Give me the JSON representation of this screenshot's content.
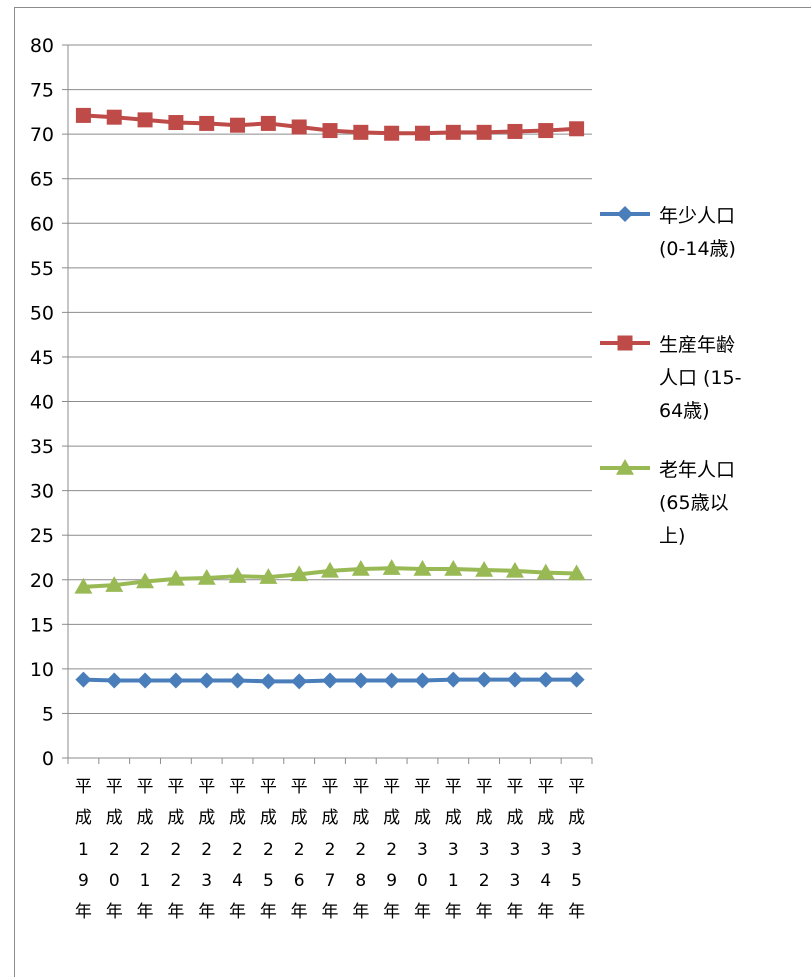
{
  "chart_data": {
    "type": "line",
    "title": "",
    "xlabel": "",
    "ylabel": "",
    "ylim": [
      0,
      80
    ],
    "yticks": [
      0,
      5,
      10,
      15,
      20,
      25,
      30,
      35,
      40,
      45,
      50,
      55,
      60,
      65,
      70,
      75,
      80
    ],
    "grid": true,
    "legend_position": "right",
    "categories": [
      [
        "平",
        "成",
        "1",
        "9",
        "年"
      ],
      [
        "平",
        "成",
        "2",
        "0",
        "年"
      ],
      [
        "平",
        "成",
        "2",
        "1",
        "年"
      ],
      [
        "平",
        "成",
        "2",
        "2",
        "年"
      ],
      [
        "平",
        "成",
        "2",
        "3",
        "年"
      ],
      [
        "平",
        "成",
        "2",
        "4",
        "年"
      ],
      [
        "平",
        "成",
        "2",
        "5",
        "年"
      ],
      [
        "平",
        "成",
        "2",
        "6",
        "年"
      ],
      [
        "平",
        "成",
        "2",
        "7",
        "年"
      ],
      [
        "平",
        "成",
        "2",
        "8",
        "年"
      ],
      [
        "平",
        "成",
        "2",
        "9",
        "年"
      ],
      [
        "平",
        "成",
        "3",
        "0",
        "年"
      ],
      [
        "平",
        "成",
        "3",
        "1",
        "年"
      ],
      [
        "平",
        "成",
        "3",
        "2",
        "年"
      ],
      [
        "平",
        "成",
        "3",
        "3",
        "年"
      ],
      [
        "平",
        "成",
        "3",
        "4",
        "年"
      ],
      [
        "平",
        "成",
        "3",
        "5",
        "年"
      ]
    ],
    "series": [
      {
        "name_lines": [
          "年少人口",
          "(0-14歳)"
        ],
        "color": "#4a7ebb",
        "marker": "diamond",
        "values": [
          8.8,
          8.7,
          8.7,
          8.7,
          8.7,
          8.7,
          8.6,
          8.6,
          8.7,
          8.7,
          8.7,
          8.7,
          8.8,
          8.8,
          8.8,
          8.8,
          8.8
        ]
      },
      {
        "name_lines": [
          "生産年齢",
          "人口 (15-",
          "64歳)"
        ],
        "color": "#be4b48",
        "marker": "square",
        "values": [
          72.1,
          71.9,
          71.6,
          71.3,
          71.2,
          71.0,
          71.2,
          70.8,
          70.4,
          70.2,
          70.1,
          70.1,
          70.2,
          70.2,
          70.3,
          70.4,
          70.6
        ]
      },
      {
        "name_lines": [
          "老年人口",
          "(65歳以",
          "上)"
        ],
        "color": "#98b954",
        "marker": "triangle",
        "values": [
          19.2,
          19.4,
          19.8,
          20.1,
          20.2,
          20.4,
          20.3,
          20.6,
          21.0,
          21.2,
          21.3,
          21.2,
          21.2,
          21.1,
          21.0,
          20.8,
          20.7
        ]
      }
    ]
  }
}
